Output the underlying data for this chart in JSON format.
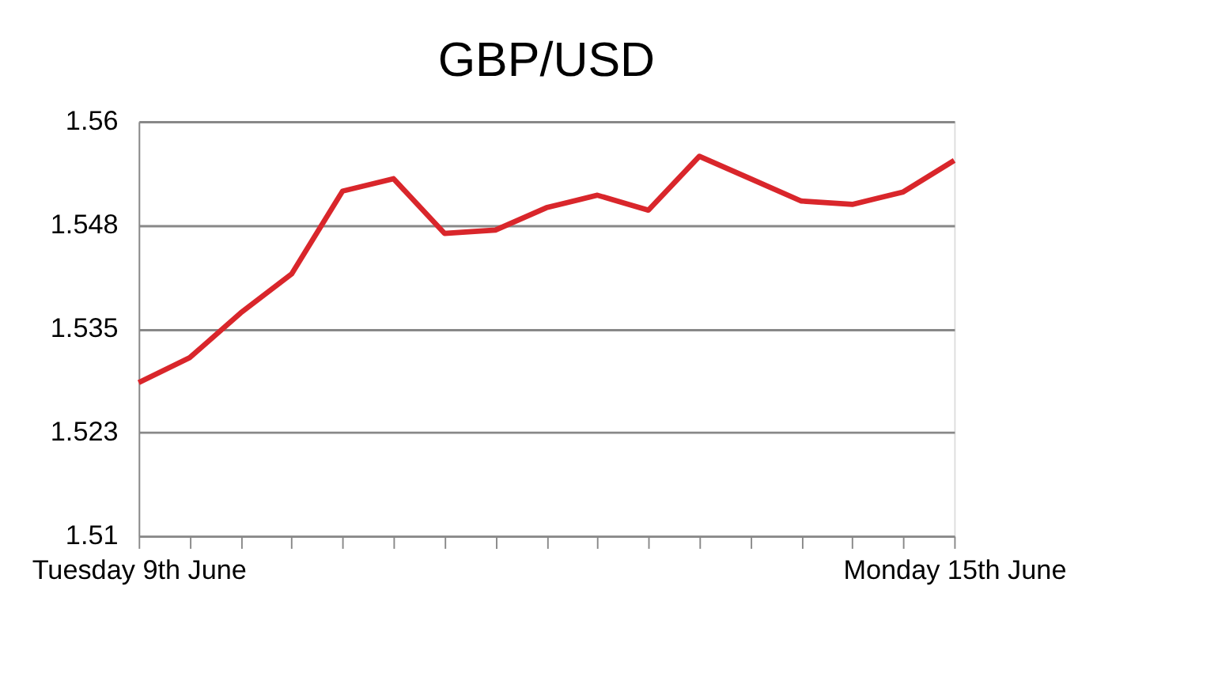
{
  "chart_data": {
    "type": "line",
    "title": "GBP/USD",
    "categories": [
      "Tuesday 9th June",
      null,
      null,
      null,
      null,
      null,
      null,
      null,
      null,
      null,
      null,
      null,
      null,
      null,
      null,
      null,
      "Monday 15th June"
    ],
    "series": [
      {
        "color": "#d9262b",
        "values": [
          1.5285,
          1.5315,
          1.5369,
          1.5416,
          1.5516,
          1.5531,
          1.5465,
          1.5469,
          1.5496,
          1.5511,
          1.5493,
          1.5558,
          1.5531,
          1.5504,
          1.55,
          1.5515,
          1.5553
        ]
      }
    ],
    "ylim": [
      1.51,
      1.56
    ],
    "yticks": [
      1.51,
      {
        "value": 1.5225,
        "label": "1.523"
      },
      1.535,
      {
        "value": 1.5475,
        "label": "1.548"
      },
      1.56
    ],
    "grid": "y",
    "marker": "none",
    "line_style": "solid"
  }
}
